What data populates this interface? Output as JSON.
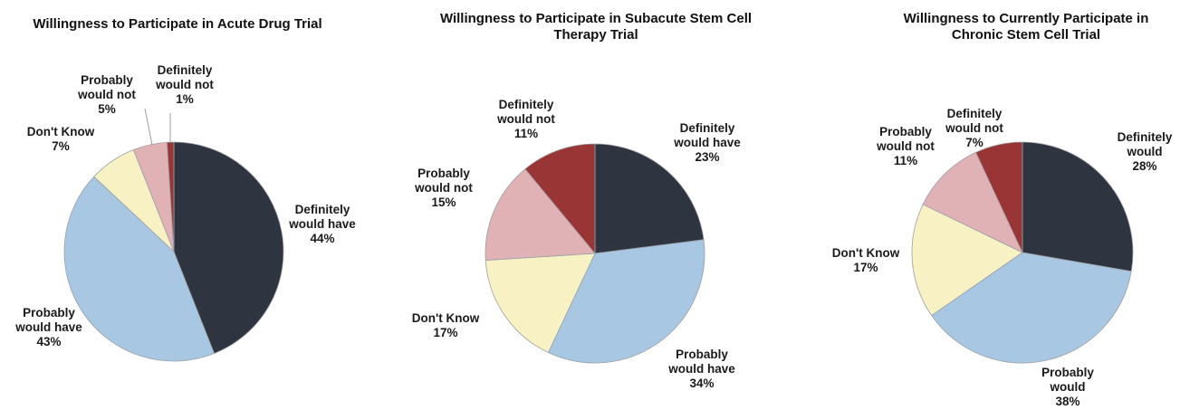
{
  "colors": {
    "definitely_would_have": "#2f3441",
    "probably_would_have": "#a8c7e2",
    "dont_know": "#f8f1c4",
    "probably_would_not": "#e1b2b5",
    "definitely_would_not": "#993535",
    "outline": "#9aa0a6"
  },
  "chart_data": [
    {
      "type": "pie",
      "title": "Willingness to Participate in Acute Drug Trial",
      "slices": [
        {
          "label": "Definitely would have",
          "value": 44,
          "color_key": "definitely_would_have",
          "text": [
            "Definitely",
            "would have",
            "44%"
          ]
        },
        {
          "label": "Probably would have",
          "value": 43,
          "color_key": "probably_would_have",
          "text": [
            "Probably",
            "would have",
            "43%"
          ]
        },
        {
          "label": "Don't Know",
          "value": 7,
          "color_key": "dont_know",
          "text": [
            "Don't Know",
            "7%"
          ]
        },
        {
          "label": "Probably would not",
          "value": 5,
          "color_key": "probably_would_not",
          "text": [
            "Probably",
            "would not",
            "5%"
          ]
        },
        {
          "label": "Definitely would not",
          "value": 1,
          "color_key": "definitely_would_not",
          "text": [
            "Definitely",
            "would not",
            "1%"
          ]
        }
      ]
    },
    {
      "type": "pie",
      "title": "Willingness to Participate in Subacute Stem Cell Therapy Trial",
      "slices": [
        {
          "label": "Definitely would have",
          "value": 23,
          "color_key": "definitely_would_have",
          "text": [
            "Definitely",
            "would have",
            "23%"
          ]
        },
        {
          "label": "Probably would have",
          "value": 34,
          "color_key": "probably_would_have",
          "text": [
            "Probably",
            "would have",
            "34%"
          ]
        },
        {
          "label": "Don't Know",
          "value": 17,
          "color_key": "dont_know",
          "text": [
            "Don't Know",
            "17%"
          ]
        },
        {
          "label": "Probably would not",
          "value": 15,
          "color_key": "probably_would_not",
          "text": [
            "Probably",
            "would not",
            "15%"
          ]
        },
        {
          "label": "Definitely would not",
          "value": 11,
          "color_key": "definitely_would_not",
          "text": [
            "Definitely",
            "would not",
            "11%"
          ]
        }
      ]
    },
    {
      "type": "pie",
      "title": "Willingness to Currently Participate in Chronic Stem Cell Trial",
      "slices": [
        {
          "label": "Definitely would",
          "value": 28,
          "color_key": "definitely_would_have",
          "text": [
            "Definitely",
            "would",
            "28%"
          ]
        },
        {
          "label": "Probably would",
          "value": 38,
          "color_key": "probably_would_have",
          "text": [
            "Probably",
            "would",
            "38%"
          ]
        },
        {
          "label": "Don't Know",
          "value": 17,
          "color_key": "dont_know",
          "text": [
            "Don't Know",
            "17%"
          ]
        },
        {
          "label": "Probably would not",
          "value": 11,
          "color_key": "probably_would_not",
          "text": [
            "Probably",
            "would not",
            "11%"
          ]
        },
        {
          "label": "Definitely would not",
          "value": 7,
          "color_key": "definitely_would_not",
          "text": [
            "Definitely",
            "would not",
            "7%"
          ]
        }
      ]
    }
  ]
}
